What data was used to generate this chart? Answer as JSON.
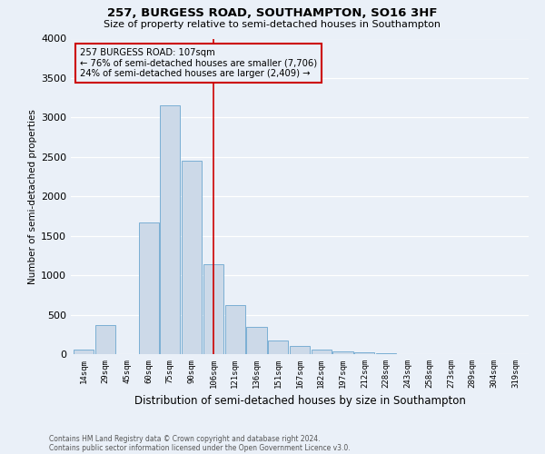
{
  "title": "257, BURGESS ROAD, SOUTHAMPTON, SO16 3HF",
  "subtitle": "Size of property relative to semi-detached houses in Southampton",
  "xlabel": "Distribution of semi-detached houses by size in Southampton",
  "ylabel": "Number of semi-detached properties",
  "bar_color": "#ccd9e8",
  "bar_edge_color": "#7bafd4",
  "bg_color": "#eaf0f8",
  "grid_color": "#ffffff",
  "categories": [
    "14sqm",
    "29sqm",
    "45sqm",
    "60sqm",
    "75sqm",
    "90sqm",
    "106sqm",
    "121sqm",
    "136sqm",
    "151sqm",
    "167sqm",
    "182sqm",
    "197sqm",
    "212sqm",
    "228sqm",
    "243sqm",
    "258sqm",
    "273sqm",
    "289sqm",
    "304sqm",
    "319sqm"
  ],
  "values": [
    60,
    370,
    5,
    1670,
    3150,
    2450,
    1140,
    620,
    340,
    175,
    105,
    60,
    40,
    20,
    10,
    5,
    5,
    3,
    2,
    1,
    1
  ],
  "property_label": "257 BURGESS ROAD: 107sqm",
  "pct_smaller": 76,
  "pct_larger": 24,
  "count_smaller": 7706,
  "count_larger": 2409,
  "vline_bin_index": 6,
  "ylim": [
    0,
    4000
  ],
  "yticks": [
    0,
    500,
    1000,
    1500,
    2000,
    2500,
    3000,
    3500,
    4000
  ],
  "annotation_color": "#cc0000",
  "footnote1": "Contains HM Land Registry data © Crown copyright and database right 2024.",
  "footnote2": "Contains public sector information licensed under the Open Government Licence v3.0."
}
